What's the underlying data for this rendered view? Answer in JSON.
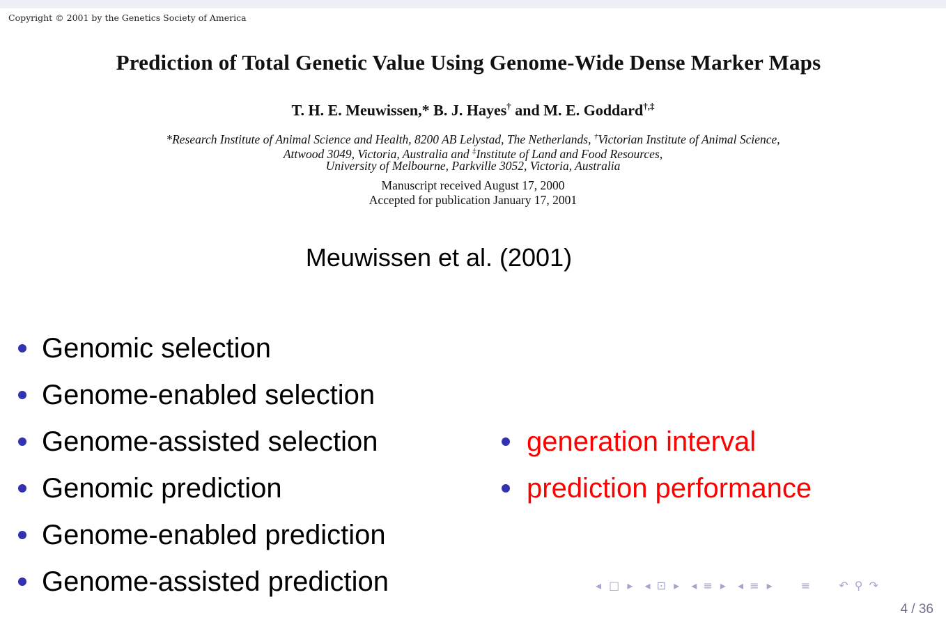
{
  "paper": {
    "copyright": "Copyright © 2001 by the Genetics Society of America",
    "title": "Prediction of Total Genetic Value Using Genome-Wide Dense Marker Maps",
    "authors": {
      "a1": "T. H. E. Meuwissen,",
      "a1_mark": "*",
      "a2": " B. J. Hayes",
      "a2_mark": "†",
      "a3": " and M. E. Goddard",
      "a3_mark": "†,‡"
    },
    "affiliation": {
      "line1_mark": "*",
      "line1": "Research Institute of Animal Science and Health, 8200 AB Lelystad, The Netherlands, ",
      "line1_mark2": "†",
      "line1_end": "Victorian Institute of Animal Science,",
      "line2": "Attwood 3049, Victoria, Australia and ",
      "line2_mark": "‡",
      "line2_end": "Institute of Land and Food Resources,",
      "line3": "University of Melbourne, Parkville 3052, Victoria, Australia"
    },
    "received": "Manuscript received August 17, 2000",
    "accepted": "Accepted for publication January 17, 2001"
  },
  "citation": "Meuwissen et al. (2001)",
  "left_bullets": [
    "Genomic selection",
    "Genome-enabled selection",
    "Genome-assisted selection",
    "Genomic prediction",
    "Genome-enabled prediction",
    "Genome-assisted prediction"
  ],
  "right_bullets": [
    "generation interval",
    "prediction performance"
  ],
  "colors": {
    "bullet": "#3333b2",
    "highlight": "#ff0000"
  },
  "navigation": {
    "prev_icon": "◂",
    "frame_icon": "□",
    "next_icon": "▸",
    "subsection_icon": "⊡",
    "section_icon": "≡",
    "menu_icon": "≡",
    "back_icon": "↶",
    "search_icon": "⚲",
    "forward_icon": "↷"
  },
  "page_number": "4 / 36"
}
